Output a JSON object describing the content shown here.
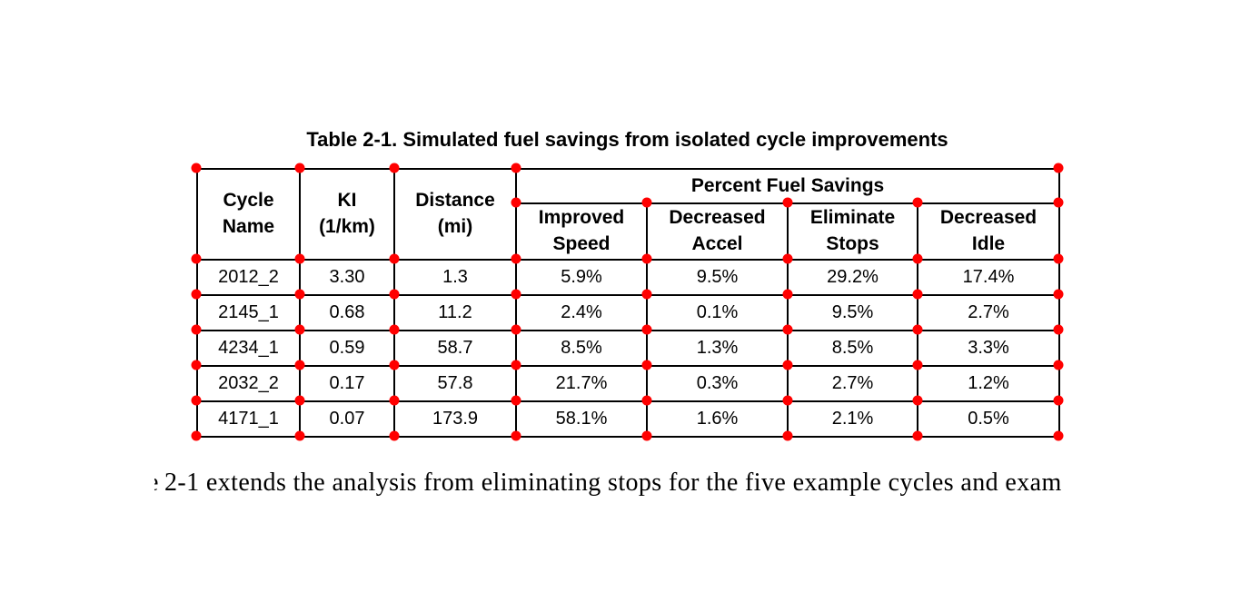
{
  "marker_color": "#ff0000",
  "title": "Table 2-1. Simulated fuel savings from isolated cycle improvements",
  "table": {
    "columns": [
      "Cycle\nName",
      "KI\n(1/km)",
      "Distance\n(mi)"
    ],
    "group_header": "Percent Fuel Savings",
    "sub_columns": [
      "Improved\nSpeed",
      "Decreased\nAccel",
      "Eliminate\nStops",
      "Decreased\nIdle"
    ],
    "rows": [
      [
        "2012_2",
        "3.30",
        "1.3",
        "5.9%",
        "9.5%",
        "29.2%",
        "17.4%"
      ],
      [
        "2145_1",
        "0.68",
        "11.2",
        "2.4%",
        "0.1%",
        "9.5%",
        "2.7%"
      ],
      [
        "4234_1",
        "0.59",
        "58.7",
        "8.5%",
        "1.3%",
        "8.5%",
        "3.3%"
      ],
      [
        "2032_2",
        "0.17",
        "57.8",
        "21.7%",
        "0.3%",
        "2.7%",
        "1.2%"
      ],
      [
        "4171_1",
        "0.07",
        "173.9",
        "58.1%",
        "1.6%",
        "2.1%",
        "0.5%"
      ]
    ]
  },
  "body_text": {
    "clipped_lead": "e",
    "visible": "2-1 extends the analysis from eliminating stops for the five example cycles and exam"
  }
}
